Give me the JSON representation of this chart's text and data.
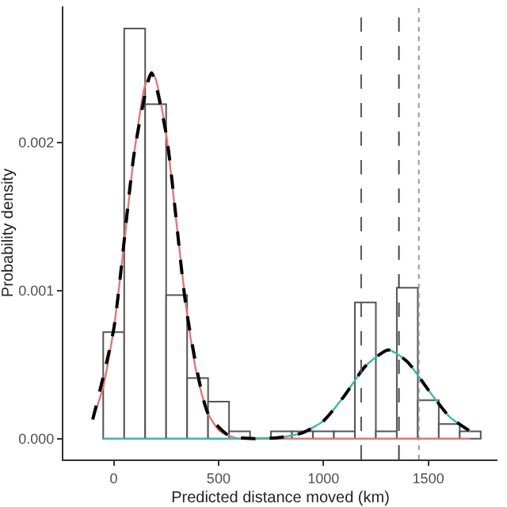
{
  "chart_data": {
    "type": "histogram",
    "xlabel": "Predicted distance moved (km)",
    "ylabel": "Probability density",
    "bins": [
      -50,
      50,
      150,
      250,
      350,
      450,
      550,
      650,
      750,
      850,
      950,
      1050,
      1150,
      1250,
      1350,
      1450,
      1550,
      1650,
      1750
    ],
    "values": [
      0.00072,
      0.00277,
      0.00226,
      0.00097,
      0.00041,
      0.00025,
      5e-05,
      0,
      5e-05,
      5e-05,
      5e-05,
      5e-05,
      0.00092,
      5e-05,
      0.00102,
      0.00026,
      0.0001,
      5e-05
    ],
    "color": "#ffffff",
    "series": [
      {
        "type": "line",
        "color": "#e07878",
        "line_style": "solid",
        "x": [
          -100,
          -50,
          0,
          50,
          100,
          150,
          180,
          200,
          250,
          300,
          350,
          400,
          450,
          500,
          550,
          600,
          700,
          1000,
          1300,
          1700
        ],
        "values": [
          0.00013,
          0.00035,
          0.00074,
          0.00132,
          0.00195,
          0.00239,
          0.00247,
          0.00243,
          0.00206,
          0.00145,
          0.00084,
          0.00041,
          0.00017,
          6e-05,
          2e-05,
          0,
          0,
          0,
          0,
          0
        ]
      },
      {
        "type": "line",
        "color": "#3ab8b2",
        "line_style": "solid",
        "x": [
          -50,
          300,
          600,
          800,
          900,
          1000,
          1100,
          1200,
          1310,
          1400,
          1500,
          1600,
          1700
        ],
        "values": [
          0,
          0,
          0,
          1e-05,
          4e-05,
          0.00012,
          0.00029,
          0.00049,
          0.0006,
          0.00052,
          0.00033,
          0.00015,
          5e-05
        ]
      },
      {
        "type": "line",
        "color": "#000000",
        "line_style": "dashed",
        "x": [
          -100,
          0,
          100,
          180,
          250,
          350,
          450,
          550,
          700,
          800,
          900,
          1000,
          1100,
          1200,
          1310,
          1400,
          1500,
          1600,
          1700
        ],
        "values": [
          0.00013,
          0.00074,
          0.00195,
          0.00247,
          0.00206,
          0.00084,
          0.00017,
          2e-05,
          0,
          1e-05,
          4e-05,
          0.00012,
          0.00029,
          0.00049,
          0.0006,
          0.00052,
          0.00033,
          0.00015,
          5e-05
        ]
      }
    ],
    "ref_lines": [
      {
        "axis": "x",
        "value": 1180,
        "color": "#555555",
        "line_style": "dashed"
      },
      {
        "axis": "x",
        "value": 1360,
        "color": "#444444",
        "line_style": "dashed"
      },
      {
        "axis": "x",
        "value": 1455,
        "color": "#999999",
        "line_style": "dotted"
      }
    ],
    "xlim": [
      -240,
      1830
    ],
    "xticks": [
      0,
      500,
      1000,
      1500
    ],
    "ylim": [
      -0.00014,
      0.00292
    ],
    "yticks": [
      {
        "value": 0,
        "label": "0.000"
      },
      {
        "value": 0.001,
        "label": "0.001"
      },
      {
        "value": 0.002,
        "label": "0.002"
      }
    ],
    "grid": false,
    "marker": "none"
  }
}
